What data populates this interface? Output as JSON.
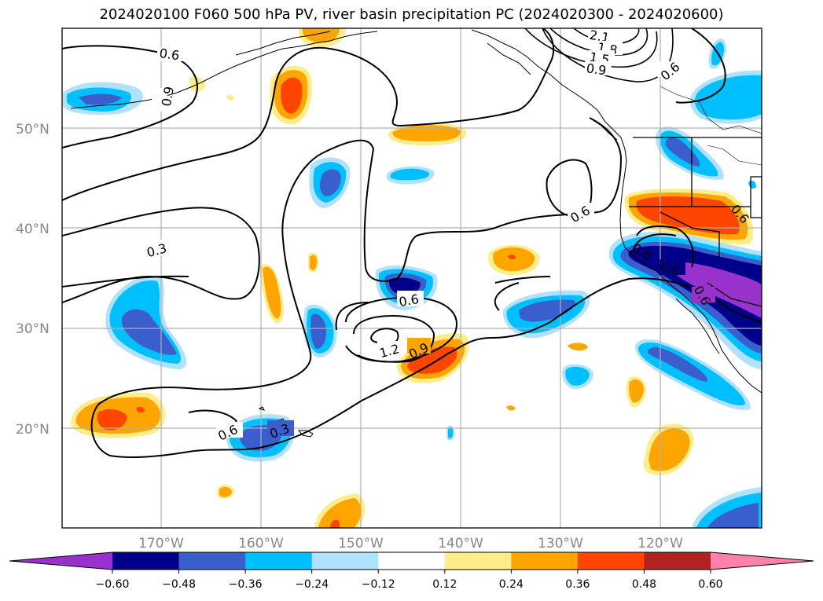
{
  "title": "2024020100 F060 500 hPa PV, river basin precipitation PC (2024020300 - 2024020600)",
  "latitude_labels": [
    "50°N",
    "40°N",
    "30°N",
    "20°N"
  ],
  "longitude_labels": [
    "170°W",
    "160°W",
    "150°W",
    "140°W",
    "130°W",
    "120°W"
  ],
  "contour_labels": [
    "0.6",
    "0.9",
    "0.3",
    "0.6",
    "0.6",
    "0.6",
    "1.2",
    "0.9",
    "0.6",
    "0.3",
    "2.1",
    "1.8",
    "1.5",
    "0.9",
    "0.6",
    "0.6",
    "0.6",
    "0.6"
  ],
  "colorbar": {
    "ticks": [
      "−0.60",
      "−0.48",
      "−0.36",
      "−0.24",
      "−0.12",
      "0.12",
      "0.24",
      "0.36",
      "0.48",
      "0.60"
    ],
    "colors": [
      "#9932cc",
      "#00008b",
      "#3a5fcd",
      "#00bfff",
      "#b0e2ff",
      "#ffffff",
      "#ffec8b",
      "#ffa500",
      "#ff4500",
      "#b22222",
      "#ff82ab"
    ]
  },
  "shading_colors": {
    "neg_light": "#b0e2ff",
    "neg_mid": "#00bfff",
    "neg_strong": "#3a5fcd",
    "neg_deep": "#00008b",
    "neg_extreme": "#9932cc",
    "pos_light": "#ffec8b",
    "pos_mid": "#ffa500",
    "pos_strong": "#ff4500"
  }
}
